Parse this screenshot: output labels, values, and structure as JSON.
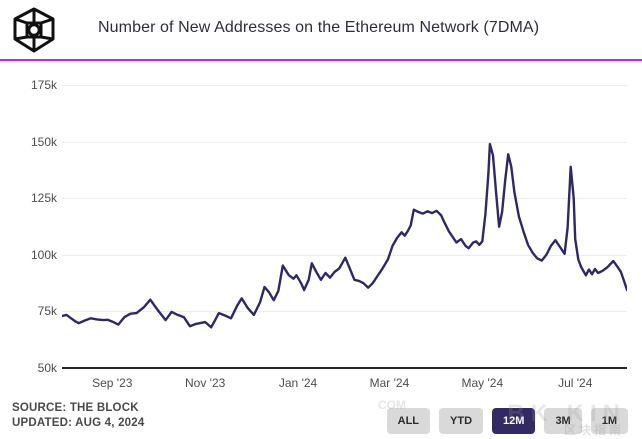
{
  "header": {
    "title": "Number of New Addresses on the Ethereum Network (7DMA)",
    "logo_name": "the-block-logo",
    "divider_color": "#c226e8"
  },
  "chart_data": {
    "type": "line",
    "title": "Number of New Addresses on the Ethereum Network (7DMA)",
    "series_name": "New Addresses (7DMA)",
    "value_unit": "thousands of addresses",
    "line_color": "#2e2963",
    "grid": "horizontal",
    "legend": "none",
    "ylim": [
      50,
      184
    ],
    "x_range": [
      "2023-07-30",
      "2024-08-04"
    ],
    "y_ticks": [
      {
        "value": 175,
        "label": "175k"
      },
      {
        "value": 150,
        "label": "150k"
      },
      {
        "value": 125,
        "label": "125k"
      },
      {
        "value": 100,
        "label": "100k"
      },
      {
        "value": 75,
        "label": "75k"
      },
      {
        "value": 50,
        "label": "50k"
      }
    ],
    "x_ticks": [
      {
        "label": "Sep '23",
        "date": "2023-09-01"
      },
      {
        "label": "Nov '23",
        "date": "2023-11-01"
      },
      {
        "label": "Jan '24",
        "date": "2024-01-01"
      },
      {
        "label": "Mar '24",
        "date": "2024-03-01"
      },
      {
        "label": "May '24",
        "date": "2024-05-01"
      },
      {
        "label": "Jul '24",
        "date": "2024-07-01"
      }
    ],
    "points": [
      [
        "2023-07-30",
        73
      ],
      [
        "2023-08-02",
        73.5
      ],
      [
        "2023-08-05",
        72
      ],
      [
        "2023-08-08",
        70.5
      ],
      [
        "2023-08-10",
        69.8
      ],
      [
        "2023-08-14",
        71
      ],
      [
        "2023-08-18",
        72
      ],
      [
        "2023-08-22",
        71.5
      ],
      [
        "2023-08-26",
        71.2
      ],
      [
        "2023-08-29",
        71.3
      ],
      [
        "2023-09-01",
        70.5
      ],
      [
        "2023-09-05",
        69.2
      ],
      [
        "2023-09-09",
        72.5
      ],
      [
        "2023-09-13",
        74
      ],
      [
        "2023-09-17",
        74.3
      ],
      [
        "2023-09-22",
        77
      ],
      [
        "2023-09-26",
        80.2
      ],
      [
        "2023-10-01",
        75.5
      ],
      [
        "2023-10-06",
        71.2
      ],
      [
        "2023-10-10",
        74.8
      ],
      [
        "2023-10-14",
        73.5
      ],
      [
        "2023-10-18",
        72.5
      ],
      [
        "2023-10-22",
        68.5
      ],
      [
        "2023-10-26",
        69.5
      ],
      [
        "2023-11-01",
        70.3
      ],
      [
        "2023-11-05",
        68
      ],
      [
        "2023-11-10",
        74.3
      ],
      [
        "2023-11-14",
        73.2
      ],
      [
        "2023-11-18",
        72
      ],
      [
        "2023-11-22",
        77.5
      ],
      [
        "2023-11-25",
        80.8
      ],
      [
        "2023-11-29",
        76.5
      ],
      [
        "2023-12-03",
        73.5
      ],
      [
        "2023-12-07",
        79
      ],
      [
        "2023-12-10",
        85.8
      ],
      [
        "2023-12-13",
        83.5
      ],
      [
        "2023-12-16",
        80
      ],
      [
        "2023-12-19",
        84
      ],
      [
        "2023-12-22",
        95.3
      ],
      [
        "2023-12-26",
        91
      ],
      [
        "2023-12-29",
        89.5
      ],
      [
        "2023-12-31",
        91
      ],
      [
        "2024-01-03",
        87.5
      ],
      [
        "2024-01-05",
        84.5
      ],
      [
        "2024-01-08",
        89
      ],
      [
        "2024-01-10",
        96.3
      ],
      [
        "2024-01-13",
        92.5
      ],
      [
        "2024-01-16",
        89
      ],
      [
        "2024-01-19",
        92
      ],
      [
        "2024-01-22",
        90
      ],
      [
        "2024-01-25",
        92.5
      ],
      [
        "2024-01-28",
        94
      ],
      [
        "2024-02-01",
        98.8
      ],
      [
        "2024-02-04",
        94
      ],
      [
        "2024-02-07",
        89
      ],
      [
        "2024-02-10",
        88.5
      ],
      [
        "2024-02-13",
        87.5
      ],
      [
        "2024-02-16",
        85.5
      ],
      [
        "2024-02-19",
        87.5
      ],
      [
        "2024-02-22",
        90.5
      ],
      [
        "2024-02-25",
        93.5
      ],
      [
        "2024-02-29",
        98
      ],
      [
        "2024-03-03",
        104
      ],
      [
        "2024-03-06",
        107.5
      ],
      [
        "2024-03-09",
        110
      ],
      [
        "2024-03-11",
        108.5
      ],
      [
        "2024-03-13",
        110.5
      ],
      [
        "2024-03-15",
        113
      ],
      [
        "2024-03-17",
        120
      ],
      [
        "2024-03-20",
        119
      ],
      [
        "2024-03-23",
        118.3
      ],
      [
        "2024-03-26",
        119.3
      ],
      [
        "2024-03-29",
        118.5
      ],
      [
        "2024-04-01",
        119.5
      ],
      [
        "2024-04-04",
        117.5
      ],
      [
        "2024-04-06",
        114.5
      ],
      [
        "2024-04-09",
        110.5
      ],
      [
        "2024-04-12",
        107.5
      ],
      [
        "2024-04-14",
        105.5
      ],
      [
        "2024-04-17",
        107
      ],
      [
        "2024-04-20",
        104
      ],
      [
        "2024-04-22",
        103
      ],
      [
        "2024-04-25",
        105.5
      ],
      [
        "2024-04-27",
        106
      ],
      [
        "2024-04-29",
        104.5
      ],
      [
        "2024-05-01",
        106
      ],
      [
        "2024-05-03",
        118
      ],
      [
        "2024-05-05",
        136
      ],
      [
        "2024-05-06",
        149
      ],
      [
        "2024-05-08",
        144
      ],
      [
        "2024-05-10",
        128
      ],
      [
        "2024-05-12",
        112.5
      ],
      [
        "2024-05-14",
        119
      ],
      [
        "2024-05-16",
        133
      ],
      [
        "2024-05-18",
        144.5
      ],
      [
        "2024-05-20",
        139
      ],
      [
        "2024-05-22",
        128
      ],
      [
        "2024-05-25",
        117
      ],
      [
        "2024-05-28",
        110.5
      ],
      [
        "2024-05-31",
        104.5
      ],
      [
        "2024-06-03",
        101
      ],
      [
        "2024-06-06",
        98.5
      ],
      [
        "2024-06-09",
        97.5
      ],
      [
        "2024-06-12",
        100
      ],
      [
        "2024-06-15",
        104
      ],
      [
        "2024-06-18",
        106.5
      ],
      [
        "2024-06-21",
        103.5
      ],
      [
        "2024-06-24",
        100.5
      ],
      [
        "2024-06-26",
        112
      ],
      [
        "2024-06-28",
        139
      ],
      [
        "2024-06-30",
        125
      ],
      [
        "2024-07-01",
        107
      ],
      [
        "2024-07-03",
        98
      ],
      [
        "2024-07-05",
        94.5
      ],
      [
        "2024-07-08",
        91
      ],
      [
        "2024-07-10",
        93.5
      ],
      [
        "2024-07-12",
        91.5
      ],
      [
        "2024-07-14",
        93.8
      ],
      [
        "2024-07-16",
        92
      ],
      [
        "2024-07-19",
        93
      ],
      [
        "2024-07-22",
        94.5
      ],
      [
        "2024-07-26",
        97.3
      ],
      [
        "2024-07-29",
        94.5
      ],
      [
        "2024-07-31",
        92.5
      ],
      [
        "2024-08-02",
        88.5
      ],
      [
        "2024-08-04",
        84.5
      ]
    ]
  },
  "footer": {
    "source_line": "SOURCE: THE BLOCK",
    "updated_line": "UPDATED: AUG 4, 2024"
  },
  "range_buttons": [
    {
      "label": "ALL",
      "active": false
    },
    {
      "label": "YTD",
      "active": false
    },
    {
      "label": "12M",
      "active": true
    },
    {
      "label": "3M",
      "active": false
    },
    {
      "label": "1M",
      "active": false
    }
  ],
  "watermark": {
    "left_text": "COM",
    "main_text": "BK KIN",
    "sub_text": "区块指南"
  }
}
